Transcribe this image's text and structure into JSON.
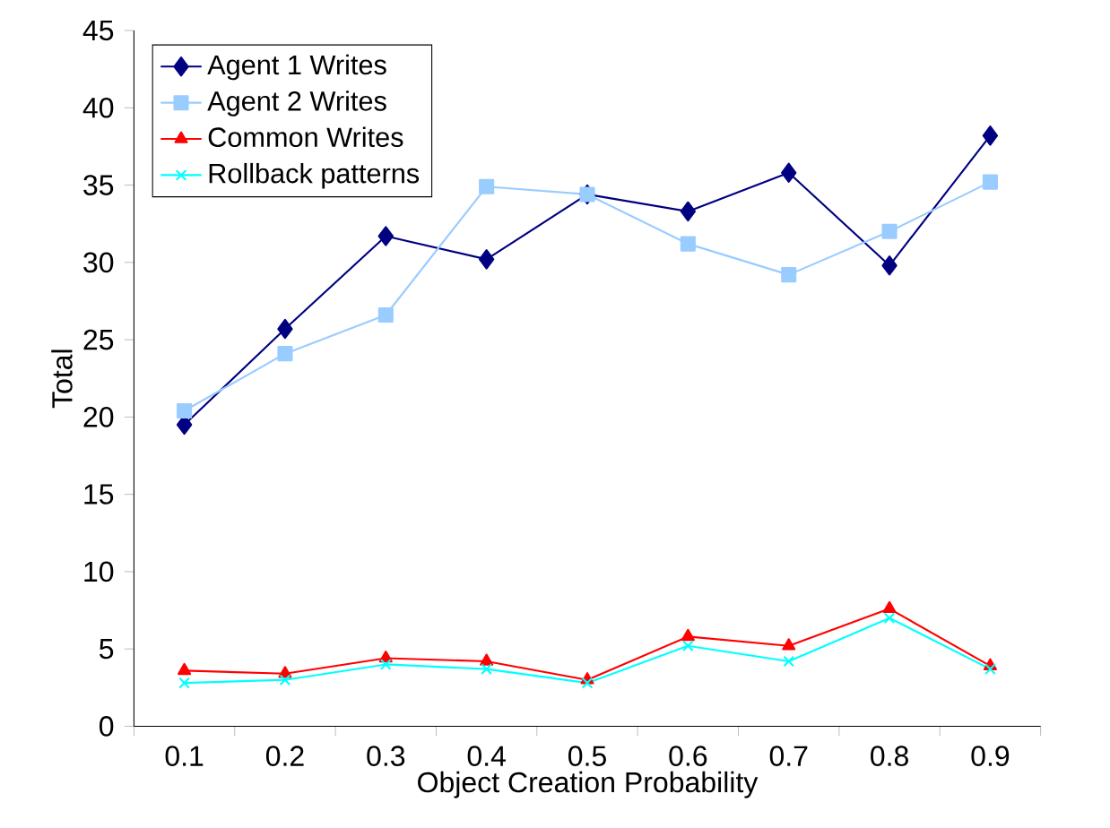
{
  "chart_data": {
    "type": "line",
    "xlabel": "Object Creation Probability",
    "ylabel": "Total",
    "categories": [
      "0.1",
      "0.2",
      "0.3",
      "0.4",
      "0.5",
      "0.6",
      "0.7",
      "0.8",
      "0.9"
    ],
    "ylim": [
      0,
      45
    ],
    "yticks": [
      0,
      5,
      10,
      15,
      20,
      25,
      30,
      35,
      40,
      45
    ],
    "grid": false,
    "legend": "top left",
    "line_style": "solid",
    "series": [
      {
        "name": "Agent 1 Writes",
        "color": "#000080",
        "marker": "diamond",
        "values": [
          19.5,
          25.7,
          31.7,
          30.2,
          34.4,
          33.3,
          35.8,
          29.8,
          38.2
        ]
      },
      {
        "name": "Agent 2 Writes",
        "color": "#99ccff",
        "marker": "square",
        "values": [
          20.4,
          24.1,
          26.6,
          34.9,
          34.4,
          31.2,
          29.2,
          32.0,
          35.2
        ]
      },
      {
        "name": "Common Writes",
        "color": "#ff0000",
        "marker": "triangle",
        "values": [
          3.6,
          3.4,
          4.4,
          4.2,
          3.0,
          5.8,
          5.2,
          7.6,
          3.9
        ]
      },
      {
        "name": "Rollback patterns",
        "color": "#00ffff",
        "marker": "cross",
        "values": [
          2.8,
          3.0,
          4.0,
          3.7,
          2.8,
          5.2,
          4.2,
          7.0,
          3.7
        ]
      }
    ]
  }
}
